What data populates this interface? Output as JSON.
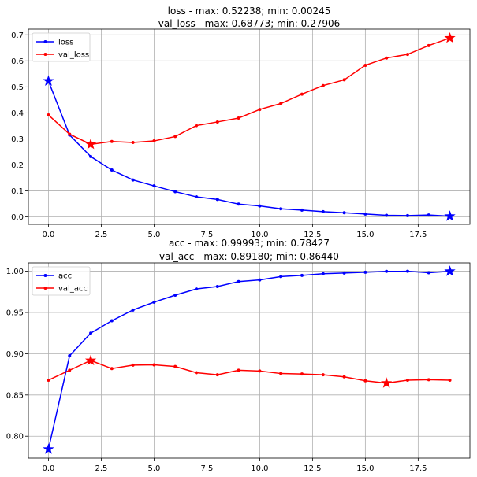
{
  "chart_data": [
    {
      "type": "line",
      "title_lines": [
        "loss - max: 0.52238; min: 0.00245",
        "val_loss - max: 0.68773; min: 0.27906"
      ],
      "xlabel": "",
      "ylabel": "",
      "xlim": [
        -0.95,
        19.95
      ],
      "ylim": [
        -0.0288,
        0.7221
      ],
      "x_ticks": [
        0.0,
        2.5,
        5.0,
        7.5,
        10.0,
        12.5,
        15.0,
        17.5
      ],
      "x_tick_labels": [
        "0.0",
        "2.5",
        "5.0",
        "7.5",
        "10.0",
        "12.5",
        "15.0",
        "17.5"
      ],
      "y_ticks": [
        0.0,
        0.1,
        0.2,
        0.3,
        0.4,
        0.5,
        0.6,
        0.7
      ],
      "y_tick_labels": [
        "0.0",
        "0.1",
        "0.2",
        "0.3",
        "0.4",
        "0.5",
        "0.6",
        "0.7"
      ],
      "grid": true,
      "legend_position": "upper-left",
      "x": [
        0,
        1,
        2,
        3,
        4,
        5,
        6,
        7,
        8,
        9,
        10,
        11,
        12,
        13,
        14,
        15,
        16,
        17,
        18,
        19
      ],
      "series": [
        {
          "name": "loss",
          "color": "#0000ff",
          "values": [
            0.52238,
            0.315,
            0.232,
            0.18,
            0.142,
            0.119,
            0.097,
            0.077,
            0.067,
            0.049,
            0.042,
            0.031,
            0.026,
            0.02,
            0.016,
            0.011,
            0.006,
            0.005,
            0.007,
            0.00245
          ],
          "star_points": [
            0,
            19
          ]
        },
        {
          "name": "val_loss",
          "color": "#ff0000",
          "values": [
            0.392,
            0.318,
            0.27906,
            0.29,
            0.286,
            0.292,
            0.309,
            0.351,
            0.365,
            0.38,
            0.413,
            0.436,
            0.472,
            0.505,
            0.527,
            0.583,
            0.611,
            0.625,
            0.659,
            0.68773
          ],
          "star_points": [
            2,
            19
          ]
        }
      ]
    },
    {
      "type": "line",
      "title_lines": [
        "acc - max: 0.99993; min: 0.78427",
        "val_acc - max: 0.89180; min: 0.86440"
      ],
      "xlabel": "",
      "ylabel": "",
      "xlim": [
        -0.95,
        19.95
      ],
      "ylim": [
        0.7735,
        1.0101
      ],
      "x_ticks": [
        0.0,
        2.5,
        5.0,
        7.5,
        10.0,
        12.5,
        15.0,
        17.5
      ],
      "x_tick_labels": [
        "0.0",
        "2.5",
        "5.0",
        "7.5",
        "10.0",
        "12.5",
        "15.0",
        "17.5"
      ],
      "y_ticks": [
        0.8,
        0.85,
        0.9,
        0.95,
        1.0
      ],
      "y_tick_labels": [
        "0.80",
        "0.85",
        "0.90",
        "0.95",
        "1.00"
      ],
      "grid": true,
      "legend_position": "upper-left",
      "x": [
        0,
        1,
        2,
        3,
        4,
        5,
        6,
        7,
        8,
        9,
        10,
        11,
        12,
        13,
        14,
        15,
        16,
        17,
        18,
        19
      ],
      "series": [
        {
          "name": "acc",
          "color": "#0000ff",
          "values": [
            0.78427,
            0.8975,
            0.925,
            0.94,
            0.953,
            0.9625,
            0.971,
            0.9785,
            0.9815,
            0.9875,
            0.9895,
            0.9935,
            0.995,
            0.997,
            0.9978,
            0.9988,
            0.9998,
            0.99993,
            0.9982,
            0.99993
          ],
          "star_points": [
            0,
            19
          ]
        },
        {
          "name": "val_acc",
          "color": "#ff0000",
          "values": [
            0.868,
            0.88,
            0.8918,
            0.882,
            0.8862,
            0.8865,
            0.8845,
            0.877,
            0.8745,
            0.88,
            0.879,
            0.876,
            0.8755,
            0.8745,
            0.872,
            0.8672,
            0.8644,
            0.868,
            0.8685,
            0.868
          ],
          "star_points": [
            16,
            2
          ]
        }
      ]
    }
  ]
}
